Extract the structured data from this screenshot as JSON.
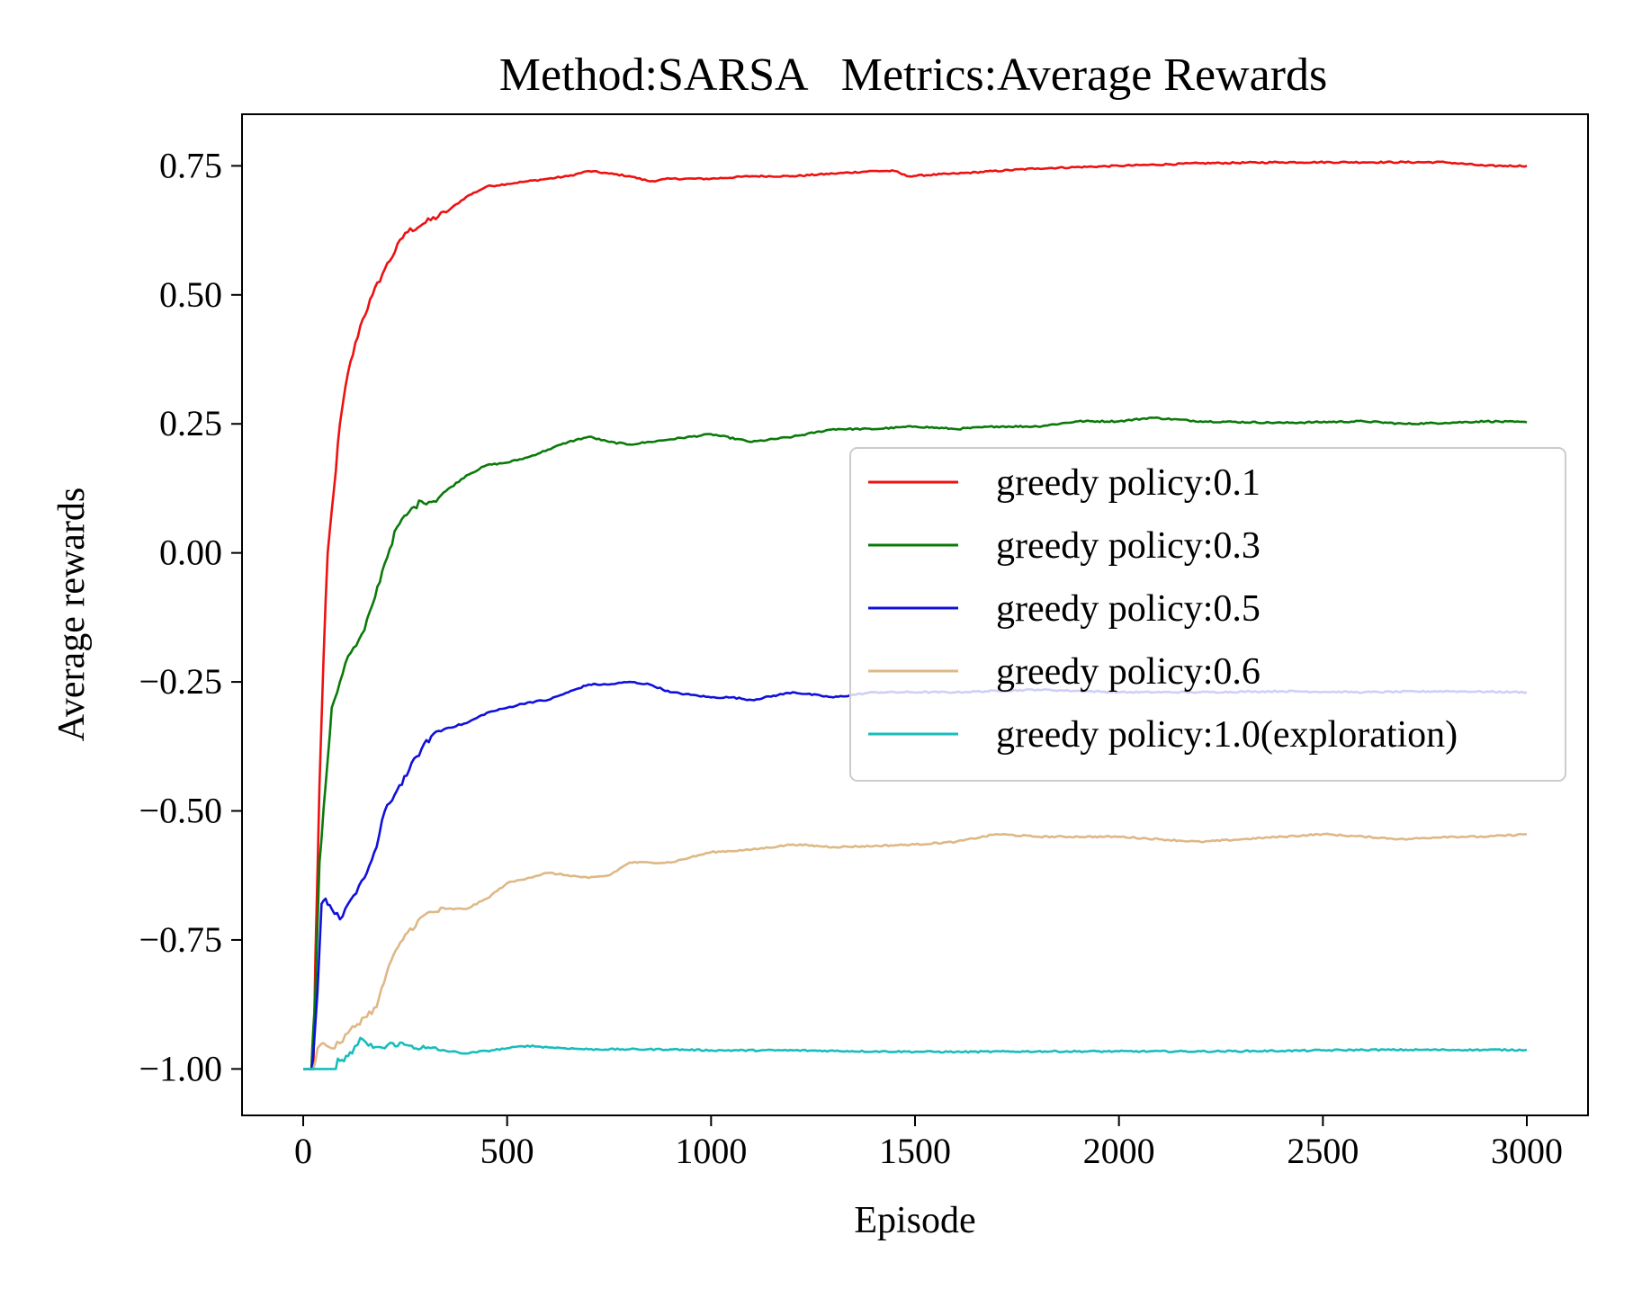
{
  "chart_data": {
    "type": "line",
    "title": "Method:SARSA   Metrics:Average Rewards",
    "xlabel": "Episode",
    "ylabel": "Average rewards",
    "xlim": [
      -150,
      3150
    ],
    "ylim": [
      -1.09,
      0.85
    ],
    "xticks": [
      0,
      500,
      1000,
      1500,
      2000,
      2500,
      3000
    ],
    "xtick_labels": [
      "0",
      "500",
      "1000",
      "1500",
      "2000",
      "2500",
      "3000"
    ],
    "yticks": [
      0.75,
      0.5,
      0.25,
      0.0,
      -0.25,
      -0.5,
      -0.75,
      -1.0
    ],
    "ytick_labels": [
      "0.75",
      "0.50",
      "0.25",
      "0.00",
      "−0.25",
      "−0.50",
      "−0.75",
      "−1.00"
    ],
    "grid": false,
    "legend_position": "center-right",
    "series": [
      {
        "name": "greedy policy:0.1",
        "color": "#ee1111",
        "points": [
          [
            0,
            -1.0
          ],
          [
            25,
            -1.0
          ],
          [
            30,
            -0.78
          ],
          [
            40,
            -0.45
          ],
          [
            50,
            -0.2
          ],
          [
            60,
            0.0
          ],
          [
            75,
            0.12
          ],
          [
            90,
            0.25
          ],
          [
            110,
            0.35
          ],
          [
            140,
            0.44
          ],
          [
            170,
            0.5
          ],
          [
            200,
            0.55
          ],
          [
            250,
            0.62
          ],
          [
            300,
            0.64
          ],
          [
            350,
            0.66
          ],
          [
            400,
            0.69
          ],
          [
            450,
            0.71
          ],
          [
            500,
            0.715
          ],
          [
            550,
            0.72
          ],
          [
            600,
            0.725
          ],
          [
            650,
            0.73
          ],
          [
            700,
            0.74
          ],
          [
            750,
            0.735
          ],
          [
            800,
            0.73
          ],
          [
            850,
            0.72
          ],
          [
            900,
            0.725
          ],
          [
            1000,
            0.725
          ],
          [
            1100,
            0.73
          ],
          [
            1200,
            0.73
          ],
          [
            1300,
            0.735
          ],
          [
            1400,
            0.74
          ],
          [
            1450,
            0.74
          ],
          [
            1480,
            0.73
          ],
          [
            1600,
            0.735
          ],
          [
            1800,
            0.745
          ],
          [
            2000,
            0.75
          ],
          [
            2200,
            0.755
          ],
          [
            2400,
            0.757
          ],
          [
            2600,
            0.757
          ],
          [
            2800,
            0.757
          ],
          [
            2900,
            0.75
          ],
          [
            3000,
            0.75
          ]
        ]
      },
      {
        "name": "greedy policy:0.3",
        "color": "#0a7a0a",
        "points": [
          [
            0,
            -1.0
          ],
          [
            20,
            -1.0
          ],
          [
            25,
            -0.92
          ],
          [
            30,
            -0.85
          ],
          [
            40,
            -0.6
          ],
          [
            55,
            -0.45
          ],
          [
            70,
            -0.3
          ],
          [
            90,
            -0.25
          ],
          [
            110,
            -0.2
          ],
          [
            130,
            -0.18
          ],
          [
            150,
            -0.15
          ],
          [
            170,
            -0.1
          ],
          [
            200,
            -0.02
          ],
          [
            230,
            0.05
          ],
          [
            260,
            0.08
          ],
          [
            290,
            0.1
          ],
          [
            320,
            0.1
          ],
          [
            350,
            0.12
          ],
          [
            400,
            0.15
          ],
          [
            450,
            0.17
          ],
          [
            500,
            0.175
          ],
          [
            550,
            0.185
          ],
          [
            600,
            0.2
          ],
          [
            650,
            0.215
          ],
          [
            700,
            0.225
          ],
          [
            750,
            0.215
          ],
          [
            800,
            0.21
          ],
          [
            850,
            0.215
          ],
          [
            900,
            0.22
          ],
          [
            1000,
            0.23
          ],
          [
            1100,
            0.215
          ],
          [
            1200,
            0.225
          ],
          [
            1300,
            0.24
          ],
          [
            1400,
            0.24
          ],
          [
            1500,
            0.245
          ],
          [
            1600,
            0.24
          ],
          [
            1700,
            0.245
          ],
          [
            1800,
            0.245
          ],
          [
            1900,
            0.255
          ],
          [
            2000,
            0.255
          ],
          [
            2080,
            0.262
          ],
          [
            2200,
            0.255
          ],
          [
            2400,
            0.252
          ],
          [
            2600,
            0.255
          ],
          [
            2700,
            0.25
          ],
          [
            2800,
            0.252
          ],
          [
            2900,
            0.255
          ],
          [
            3000,
            0.253
          ]
        ]
      },
      {
        "name": "greedy policy:0.5",
        "color": "#1010dd",
        "points": [
          [
            0,
            -1.0
          ],
          [
            20,
            -1.0
          ],
          [
            25,
            -0.97
          ],
          [
            35,
            -0.85
          ],
          [
            45,
            -0.68
          ],
          [
            55,
            -0.67
          ],
          [
            70,
            -0.69
          ],
          [
            90,
            -0.71
          ],
          [
            110,
            -0.68
          ],
          [
            130,
            -0.66
          ],
          [
            150,
            -0.63
          ],
          [
            180,
            -0.57
          ],
          [
            200,
            -0.5
          ],
          [
            230,
            -0.46
          ],
          [
            260,
            -0.42
          ],
          [
            290,
            -0.38
          ],
          [
            320,
            -0.35
          ],
          [
            350,
            -0.34
          ],
          [
            400,
            -0.33
          ],
          [
            450,
            -0.31
          ],
          [
            500,
            -0.3
          ],
          [
            550,
            -0.29
          ],
          [
            600,
            -0.285
          ],
          [
            650,
            -0.27
          ],
          [
            700,
            -0.255
          ],
          [
            750,
            -0.255
          ],
          [
            800,
            -0.25
          ],
          [
            850,
            -0.255
          ],
          [
            900,
            -0.27
          ],
          [
            950,
            -0.275
          ],
          [
            1000,
            -0.28
          ],
          [
            1050,
            -0.28
          ],
          [
            1100,
            -0.285
          ],
          [
            1200,
            -0.27
          ],
          [
            1300,
            -0.28
          ],
          [
            1400,
            -0.27
          ],
          [
            1600,
            -0.27
          ],
          [
            1800,
            -0.265
          ],
          [
            2000,
            -0.27
          ],
          [
            2200,
            -0.27
          ],
          [
            2400,
            -0.268
          ],
          [
            2600,
            -0.27
          ],
          [
            2800,
            -0.268
          ],
          [
            3000,
            -0.27
          ]
        ]
      },
      {
        "name": "greedy policy:0.6",
        "color": "#deb887",
        "points": [
          [
            0,
            -1.0
          ],
          [
            25,
            -1.0
          ],
          [
            35,
            -0.96
          ],
          [
            50,
            -0.95
          ],
          [
            70,
            -0.96
          ],
          [
            90,
            -0.95
          ],
          [
            110,
            -0.93
          ],
          [
            150,
            -0.9
          ],
          [
            180,
            -0.88
          ],
          [
            210,
            -0.8
          ],
          [
            250,
            -0.74
          ],
          [
            300,
            -0.7
          ],
          [
            350,
            -0.69
          ],
          [
            400,
            -0.69
          ],
          [
            450,
            -0.67
          ],
          [
            500,
            -0.64
          ],
          [
            550,
            -0.63
          ],
          [
            600,
            -0.62
          ],
          [
            650,
            -0.625
          ],
          [
            700,
            -0.63
          ],
          [
            750,
            -0.625
          ],
          [
            800,
            -0.6
          ],
          [
            850,
            -0.6
          ],
          [
            900,
            -0.6
          ],
          [
            950,
            -0.59
          ],
          [
            1000,
            -0.58
          ],
          [
            1100,
            -0.575
          ],
          [
            1200,
            -0.565
          ],
          [
            1300,
            -0.57
          ],
          [
            1400,
            -0.568
          ],
          [
            1500,
            -0.565
          ],
          [
            1600,
            -0.56
          ],
          [
            1700,
            -0.545
          ],
          [
            1800,
            -0.55
          ],
          [
            1900,
            -0.55
          ],
          [
            2000,
            -0.55
          ],
          [
            2100,
            -0.555
          ],
          [
            2200,
            -0.56
          ],
          [
            2300,
            -0.555
          ],
          [
            2400,
            -0.55
          ],
          [
            2500,
            -0.545
          ],
          [
            2600,
            -0.55
          ],
          [
            2700,
            -0.555
          ],
          [
            2800,
            -0.55
          ],
          [
            2900,
            -0.55
          ],
          [
            3000,
            -0.545
          ]
        ]
      },
      {
        "name": "greedy policy:1.0(exploration)",
        "color": "#17bebb",
        "points": [
          [
            0,
            -1.0
          ],
          [
            80,
            -1.0
          ],
          [
            85,
            -0.98
          ],
          [
            100,
            -0.985
          ],
          [
            110,
            -0.975
          ],
          [
            120,
            -0.97
          ],
          [
            140,
            -0.94
          ],
          [
            160,
            -0.955
          ],
          [
            200,
            -0.96
          ],
          [
            220,
            -0.95
          ],
          [
            260,
            -0.955
          ],
          [
            300,
            -0.96
          ],
          [
            350,
            -0.965
          ],
          [
            400,
            -0.97
          ],
          [
            450,
            -0.965
          ],
          [
            500,
            -0.96
          ],
          [
            550,
            -0.955
          ],
          [
            600,
            -0.958
          ],
          [
            700,
            -0.962
          ],
          [
            800,
            -0.962
          ],
          [
            900,
            -0.962
          ],
          [
            1000,
            -0.964
          ],
          [
            1200,
            -0.964
          ],
          [
            1400,
            -0.966
          ],
          [
            1600,
            -0.967
          ],
          [
            1800,
            -0.966
          ],
          [
            2000,
            -0.966
          ],
          [
            2200,
            -0.966
          ],
          [
            2400,
            -0.965
          ],
          [
            2600,
            -0.963
          ],
          [
            2800,
            -0.963
          ],
          [
            3000,
            -0.963
          ]
        ]
      }
    ]
  }
}
